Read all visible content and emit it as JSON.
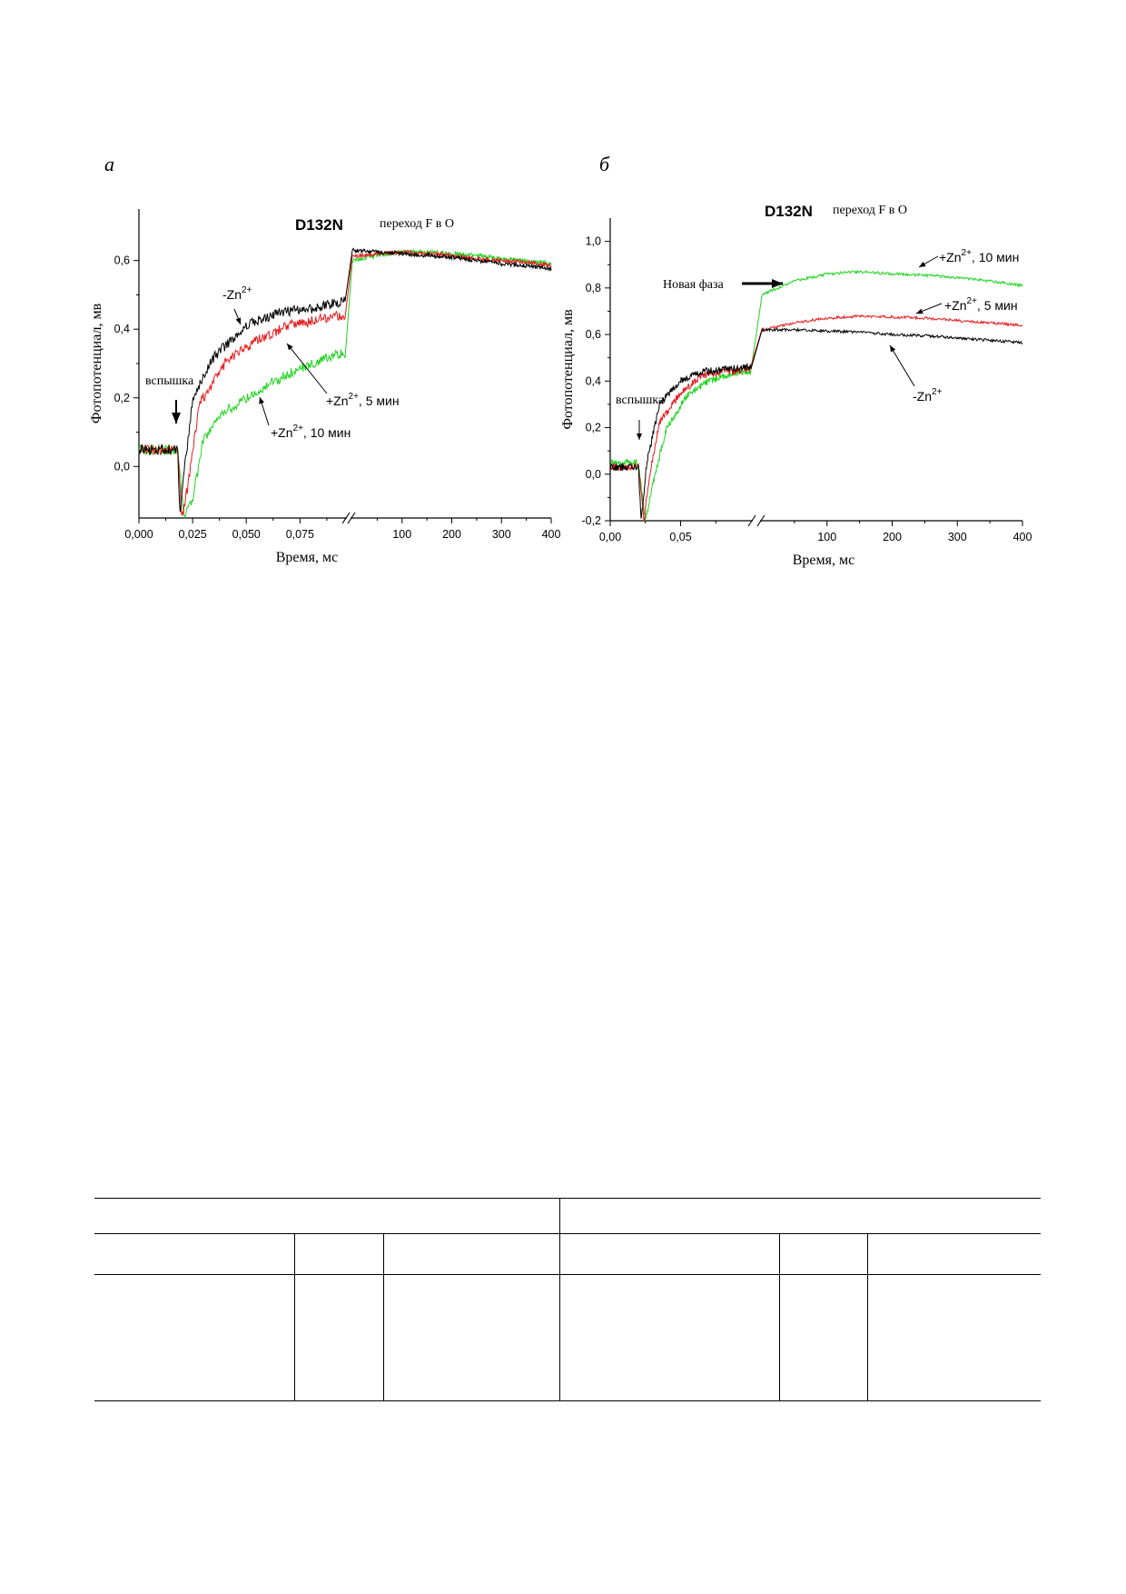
{
  "panels": {
    "a": {
      "letter": "а"
    },
    "b": {
      "letter": "б"
    }
  },
  "colors": {
    "black": "#000000",
    "red": "#e8191a",
    "green": "#22d422"
  },
  "chart_data": [
    {
      "type": "line",
      "title": "D132N",
      "subtitle": "переход F в O",
      "xlabel": "Время, мс",
      "ylabel": "Фотопотенциал, мв",
      "x_axis": {
        "broken": true,
        "left_segment": {
          "range": [
            0.0,
            0.096
          ],
          "ticks": [
            "0,000",
            "0,025",
            "0,050",
            "0,075"
          ]
        },
        "right_segment": {
          "range": [
            0,
            400
          ],
          "ticks": [
            "100",
            "200",
            "300",
            "400"
          ]
        }
      },
      "ylim": [
        -0.15,
        0.75
      ],
      "yticks": [
        "0,0",
        "0,2",
        "0,4",
        "0,6"
      ],
      "yticks_values": [
        0.0,
        0.2,
        0.4,
        0.6
      ],
      "annotations": [
        {
          "text": "вспышка",
          "x": 0.018
        },
        {
          "text": "-Zn",
          "sup": "2+",
          "series": "-Zn2+"
        },
        {
          "text": "+Zn",
          "sup": "2+",
          "suffix": ", 5 мин",
          "series": "+Zn2+, 5 мин"
        },
        {
          "text": "+Zn",
          "sup": "2+",
          "suffix": ", 10 мин",
          "series": "+Zn2+, 10 мин"
        }
      ],
      "series": [
        {
          "name": "-Zn2+",
          "color": "black",
          "fast": [
            [
              0.0,
              0.05
            ],
            [
              0.018,
              0.05
            ],
            [
              0.019,
              -0.15
            ],
            [
              0.021,
              -0.02
            ],
            [
              0.025,
              0.2
            ],
            [
              0.035,
              0.32
            ],
            [
              0.05,
              0.41
            ],
            [
              0.065,
              0.45
            ],
            [
              0.08,
              0.46
            ],
            [
              0.095,
              0.48
            ]
          ],
          "slow": [
            [
              0,
              0.63
            ],
            [
              50,
              0.625
            ],
            [
              100,
              0.62
            ],
            [
              150,
              0.615
            ],
            [
              200,
              0.61
            ],
            [
              250,
              0.6
            ],
            [
              300,
              0.59
            ],
            [
              350,
              0.585
            ],
            [
              400,
              0.575
            ]
          ]
        },
        {
          "name": "+Zn2+, 5 мин",
          "color": "red",
          "fast": [
            [
              0.0,
              0.05
            ],
            [
              0.018,
              0.05
            ],
            [
              0.02,
              -0.15
            ],
            [
              0.023,
              -0.05
            ],
            [
              0.028,
              0.18
            ],
            [
              0.04,
              0.3
            ],
            [
              0.055,
              0.37
            ],
            [
              0.07,
              0.41
            ],
            [
              0.085,
              0.43
            ],
            [
              0.095,
              0.44
            ]
          ],
          "slow": [
            [
              0,
              0.61
            ],
            [
              50,
              0.62
            ],
            [
              100,
              0.625
            ],
            [
              150,
              0.62
            ],
            [
              200,
              0.615
            ],
            [
              250,
              0.605
            ],
            [
              300,
              0.6
            ],
            [
              350,
              0.595
            ],
            [
              400,
              0.585
            ]
          ]
        },
        {
          "name": "+Zn2+, 10 мин",
          "color": "green",
          "fast": [
            [
              0.0,
              0.05
            ],
            [
              0.018,
              0.05
            ],
            [
              0.021,
              -0.15
            ],
            [
              0.025,
              -0.1
            ],
            [
              0.03,
              0.08
            ],
            [
              0.04,
              0.16
            ],
            [
              0.055,
              0.22
            ],
            [
              0.07,
              0.27
            ],
            [
              0.085,
              0.31
            ],
            [
              0.095,
              0.33
            ]
          ],
          "slow": [
            [
              0,
              0.6
            ],
            [
              50,
              0.615
            ],
            [
              100,
              0.625
            ],
            [
              150,
              0.625
            ],
            [
              200,
              0.62
            ],
            [
              250,
              0.615
            ],
            [
              300,
              0.605
            ],
            [
              350,
              0.6
            ],
            [
              400,
              0.59
            ]
          ]
        }
      ]
    },
    {
      "type": "line",
      "title": "D132N",
      "subtitle": "переход F в O",
      "xlabel": "Время, мс",
      "ylabel": "Фотопотенциал, мв",
      "x_axis": {
        "broken": true,
        "left_segment": {
          "range": [
            0.0,
            0.1
          ],
          "ticks": [
            "0,00",
            "0,05"
          ]
        },
        "right_segment": {
          "range": [
            0,
            400
          ],
          "ticks": [
            "100",
            "200",
            "300",
            "400"
          ]
        }
      },
      "ylim": [
        -0.2,
        1.1
      ],
      "yticks": [
        "-0,2",
        "0,0",
        "0,2",
        "0,4",
        "0,6",
        "0,8",
        "1,0"
      ],
      "yticks_values": [
        -0.2,
        0.0,
        0.2,
        0.4,
        0.6,
        0.8,
        1.0
      ],
      "annotations": [
        {
          "text": "вспышка",
          "x": 0.02
        },
        {
          "text": "Новая фаза",
          "series": "+Zn2+, 10 мин"
        },
        {
          "text": "+Zn",
          "sup": "2+",
          "suffix": ", 10 мин",
          "series": "+Zn2+, 10 мин"
        },
        {
          "text": "+Zn",
          "sup": "2+",
          "suffix": ", 5 мин",
          "series": "+Zn2+, 5 мин"
        },
        {
          "text": "-Zn",
          "sup": "2+",
          "series": "-Zn2+"
        }
      ],
      "series": [
        {
          "name": "-Zn2+",
          "color": "black",
          "fast": [
            [
              0.0,
              0.03
            ],
            [
              0.02,
              0.03
            ],
            [
              0.022,
              -0.2
            ],
            [
              0.026,
              0.05
            ],
            [
              0.035,
              0.3
            ],
            [
              0.05,
              0.4
            ],
            [
              0.065,
              0.44
            ],
            [
              0.08,
              0.45
            ],
            [
              0.1,
              0.46
            ]
          ],
          "slow": [
            [
              0,
              0.62
            ],
            [
              50,
              0.62
            ],
            [
              100,
              0.615
            ],
            [
              150,
              0.61
            ],
            [
              200,
              0.6
            ],
            [
              250,
              0.595
            ],
            [
              300,
              0.585
            ],
            [
              350,
              0.575
            ],
            [
              400,
              0.565
            ]
          ]
        },
        {
          "name": "+Zn2+, 5 мин",
          "color": "red",
          "fast": [
            [
              0.0,
              0.03
            ],
            [
              0.02,
              0.03
            ],
            [
              0.024,
              -0.2
            ],
            [
              0.028,
              0.0
            ],
            [
              0.035,
              0.22
            ],
            [
              0.05,
              0.35
            ],
            [
              0.065,
              0.42
            ],
            [
              0.08,
              0.44
            ],
            [
              0.1,
              0.45
            ]
          ],
          "slow": [
            [
              0,
              0.62
            ],
            [
              50,
              0.65
            ],
            [
              100,
              0.67
            ],
            [
              150,
              0.68
            ],
            [
              200,
              0.675
            ],
            [
              250,
              0.67
            ],
            [
              300,
              0.66
            ],
            [
              350,
              0.65
            ],
            [
              400,
              0.64
            ]
          ]
        },
        {
          "name": "+Zn2+, 10 мин",
          "color": "green",
          "fast": [
            [
              0.0,
              0.05
            ],
            [
              0.02,
              0.05
            ],
            [
              0.025,
              -0.2
            ],
            [
              0.03,
              -0.05
            ],
            [
              0.04,
              0.2
            ],
            [
              0.055,
              0.34
            ],
            [
              0.07,
              0.4
            ],
            [
              0.085,
              0.43
            ],
            [
              0.1,
              0.44
            ]
          ],
          "slow": [
            [
              0,
              0.77
            ],
            [
              50,
              0.83
            ],
            [
              100,
              0.86
            ],
            [
              150,
              0.87
            ],
            [
              200,
              0.86
            ],
            [
              250,
              0.855
            ],
            [
              300,
              0.845
            ],
            [
              350,
              0.83
            ],
            [
              400,
              0.81
            ]
          ]
        }
      ]
    }
  ]
}
